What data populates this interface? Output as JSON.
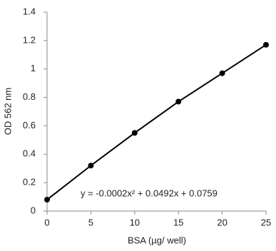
{
  "chart_data": {
    "type": "line",
    "x_label": "BSA (µg/ well)",
    "y_label": "OD 562 nm",
    "annotation": "y = -0.0002x² + 0.0492x + 0.0759",
    "x": [
      0,
      5,
      10,
      15,
      20,
      25
    ],
    "series": [
      {
        "color": "#000000",
        "values": [
          0.08,
          0.32,
          0.55,
          0.77,
          0.97,
          1.17
        ]
      }
    ],
    "markers": true,
    "grid": false,
    "xlim": [
      0,
      25
    ],
    "xticks": [
      0,
      5,
      10,
      15,
      20,
      25
    ],
    "ylim": [
      0,
      1.4
    ],
    "yticks": [
      0,
      0.2,
      0.4,
      0.6,
      0.8,
      1,
      1.2,
      1.4
    ]
  }
}
